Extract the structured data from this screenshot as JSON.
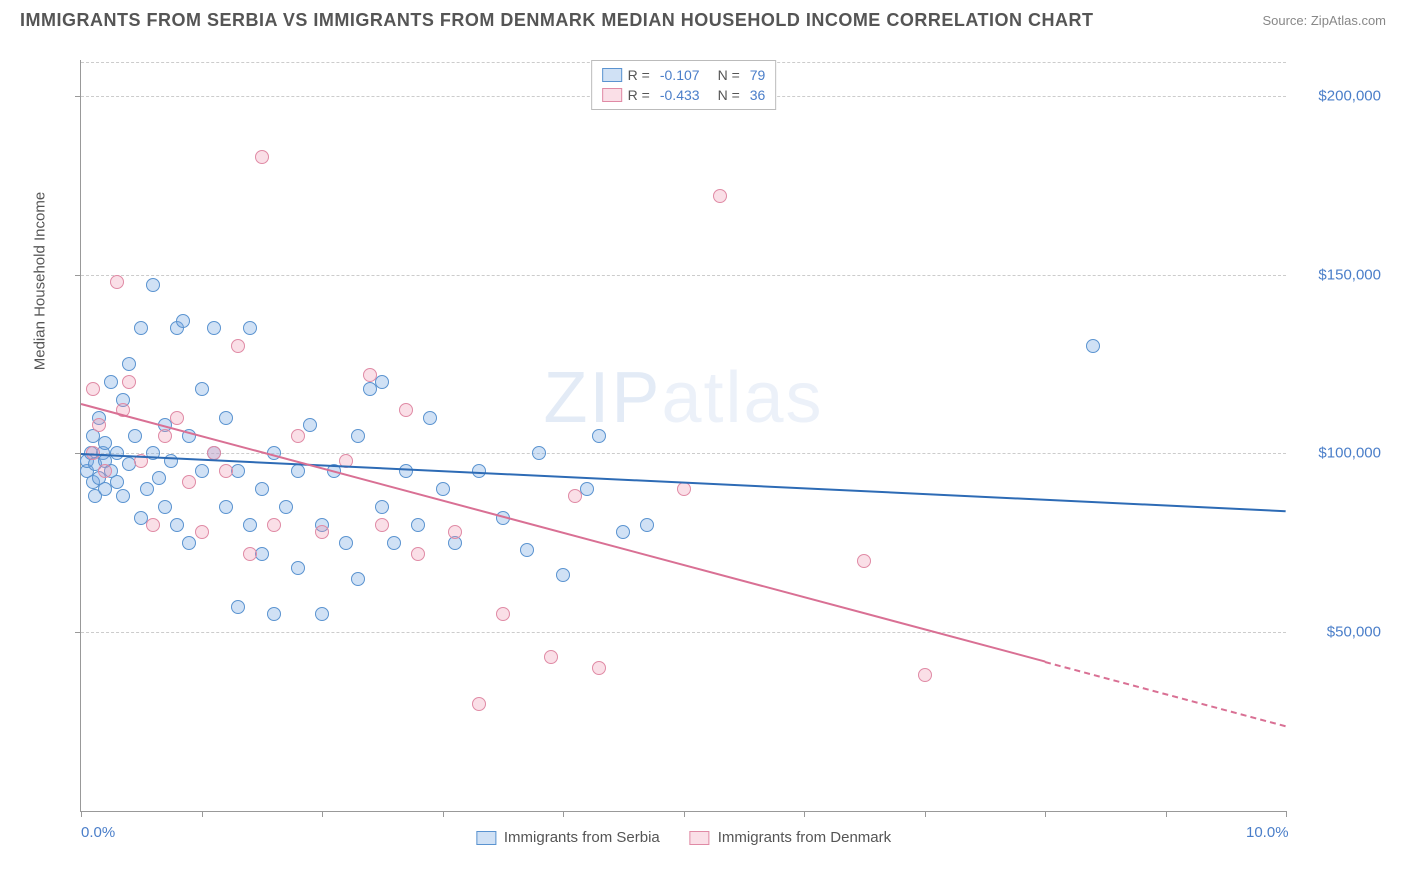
{
  "header": {
    "title": "IMMIGRANTS FROM SERBIA VS IMMIGRANTS FROM DENMARK MEDIAN HOUSEHOLD INCOME CORRELATION CHART",
    "source": "Source: ZipAtlas.com"
  },
  "chart": {
    "type": "scatter",
    "ylabel": "Median Household Income",
    "watermark": "ZIPatlas",
    "xlim": [
      0,
      10
    ],
    "ylim": [
      0,
      210000
    ],
    "xticks": [
      0,
      1,
      2,
      3,
      4,
      5,
      6,
      7,
      8,
      9,
      10
    ],
    "xtick_labels": {
      "0": "0.0%",
      "10": "10.0%"
    },
    "yticks": [
      50000,
      100000,
      150000,
      200000
    ],
    "ytick_labels": [
      "$50,000",
      "$100,000",
      "$150,000",
      "$200,000"
    ],
    "grid_color": "#cccccc",
    "background_color": "#ffffff",
    "axis_color": "#999999",
    "tick_label_color": "#4a7ec9",
    "series": [
      {
        "name": "Immigrants from Serbia",
        "fill_color": "rgba(120,170,225,0.35)",
        "stroke_color": "#5a93d0",
        "line_color": "#2d6bb5",
        "R": "-0.107",
        "N": "79",
        "trend": {
          "x1": 0,
          "y1": 100000,
          "x2": 10,
          "y2": 84000,
          "dash_from_x": null
        },
        "points": [
          [
            0.05,
            95000
          ],
          [
            0.05,
            98000
          ],
          [
            0.08,
            100000
          ],
          [
            0.1,
            92000
          ],
          [
            0.1,
            105000
          ],
          [
            0.12,
            88000
          ],
          [
            0.12,
            97000
          ],
          [
            0.15,
            110000
          ],
          [
            0.15,
            93000
          ],
          [
            0.18,
            100000
          ],
          [
            0.2,
            98000
          ],
          [
            0.2,
            103000
          ],
          [
            0.25,
            120000
          ],
          [
            0.25,
            95000
          ],
          [
            0.3,
            92000
          ],
          [
            0.3,
            100000
          ],
          [
            0.35,
            115000
          ],
          [
            0.35,
            88000
          ],
          [
            0.4,
            97000
          ],
          [
            0.4,
            125000
          ],
          [
            0.45,
            105000
          ],
          [
            0.5,
            135000
          ],
          [
            0.5,
            82000
          ],
          [
            0.55,
            90000
          ],
          [
            0.6,
            100000
          ],
          [
            0.6,
            147000
          ],
          [
            0.65,
            93000
          ],
          [
            0.7,
            108000
          ],
          [
            0.7,
            85000
          ],
          [
            0.75,
            98000
          ],
          [
            0.8,
            135000
          ],
          [
            0.8,
            80000
          ],
          [
            0.85,
            137000
          ],
          [
            0.9,
            105000
          ],
          [
            0.9,
            75000
          ],
          [
            1.0,
            95000
          ],
          [
            1.0,
            118000
          ],
          [
            1.1,
            100000
          ],
          [
            1.1,
            135000
          ],
          [
            1.2,
            85000
          ],
          [
            1.2,
            110000
          ],
          [
            1.3,
            95000
          ],
          [
            1.3,
            57000
          ],
          [
            1.4,
            135000
          ],
          [
            1.4,
            80000
          ],
          [
            1.5,
            90000
          ],
          [
            1.5,
            72000
          ],
          [
            1.6,
            100000
          ],
          [
            1.6,
            55000
          ],
          [
            1.7,
            85000
          ],
          [
            1.8,
            68000
          ],
          [
            1.8,
            95000
          ],
          [
            1.9,
            108000
          ],
          [
            2.0,
            80000
          ],
          [
            2.0,
            55000
          ],
          [
            2.1,
            95000
          ],
          [
            2.2,
            75000
          ],
          [
            2.3,
            105000
          ],
          [
            2.3,
            65000
          ],
          [
            2.4,
            118000
          ],
          [
            2.5,
            85000
          ],
          [
            2.5,
            120000
          ],
          [
            2.6,
            75000
          ],
          [
            2.7,
            95000
          ],
          [
            2.8,
            80000
          ],
          [
            2.9,
            110000
          ],
          [
            3.0,
            90000
          ],
          [
            3.1,
            75000
          ],
          [
            3.3,
            95000
          ],
          [
            3.5,
            82000
          ],
          [
            3.7,
            73000
          ],
          [
            3.8,
            100000
          ],
          [
            4.0,
            66000
          ],
          [
            4.2,
            90000
          ],
          [
            4.3,
            105000
          ],
          [
            4.5,
            78000
          ],
          [
            4.7,
            80000
          ],
          [
            8.4,
            130000
          ],
          [
            0.2,
            90000
          ]
        ]
      },
      {
        "name": "Immigrants from Denmark",
        "fill_color": "rgba(240,150,175,0.30)",
        "stroke_color": "#e08aa5",
        "line_color": "#d97094",
        "R": "-0.433",
        "N": "36",
        "trend": {
          "x1": 0,
          "y1": 114000,
          "x2": 10,
          "y2": 24000,
          "dash_from_x": 8.0
        },
        "points": [
          [
            0.1,
            100000
          ],
          [
            0.1,
            118000
          ],
          [
            0.15,
            108000
          ],
          [
            0.2,
            95000
          ],
          [
            0.3,
            148000
          ],
          [
            0.35,
            112000
          ],
          [
            0.4,
            120000
          ],
          [
            0.5,
            98000
          ],
          [
            0.6,
            80000
          ],
          [
            0.7,
            105000
          ],
          [
            0.8,
            110000
          ],
          [
            0.9,
            92000
          ],
          [
            1.0,
            78000
          ],
          [
            1.1,
            100000
          ],
          [
            1.2,
            95000
          ],
          [
            1.3,
            130000
          ],
          [
            1.4,
            72000
          ],
          [
            1.5,
            183000
          ],
          [
            1.6,
            80000
          ],
          [
            1.8,
            105000
          ],
          [
            2.0,
            78000
          ],
          [
            2.2,
            98000
          ],
          [
            2.4,
            122000
          ],
          [
            2.5,
            80000
          ],
          [
            2.7,
            112000
          ],
          [
            2.8,
            72000
          ],
          [
            3.1,
            78000
          ],
          [
            3.3,
            30000
          ],
          [
            3.5,
            55000
          ],
          [
            3.9,
            43000
          ],
          [
            4.1,
            88000
          ],
          [
            4.3,
            40000
          ],
          [
            5.0,
            90000
          ],
          [
            5.3,
            172000
          ],
          [
            6.5,
            70000
          ],
          [
            7.0,
            38000
          ]
        ]
      }
    ],
    "legend_top": {
      "rows": [
        {
          "swatch_idx": 0,
          "R_label": "R =",
          "N_label": "N ="
        },
        {
          "swatch_idx": 1,
          "R_label": "R =",
          "N_label": "N ="
        }
      ]
    },
    "legend_bottom_labels": [
      "Immigrants from Serbia",
      "Immigrants from Denmark"
    ]
  }
}
